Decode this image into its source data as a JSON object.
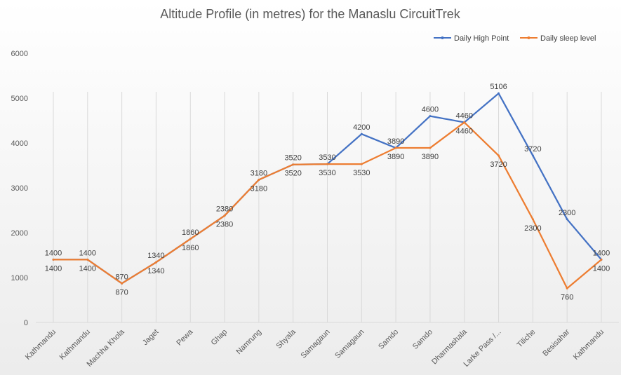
{
  "chart_data": {
    "type": "line",
    "title": "Altitude Profile (in metres) for the Manaslu CircuitTrek",
    "xlabel": "",
    "ylabel": "",
    "ylim": [
      0,
      6000
    ],
    "yticks": [
      0,
      1000,
      2000,
      3000,
      4000,
      5000,
      6000
    ],
    "grid": "vertical",
    "legend": "top-right",
    "categories": [
      "Kathmandu",
      "Kathmandu",
      "Machha Khola",
      "Jaget",
      "Pewa",
      "Ghap",
      "Namrung",
      "Shyala",
      "Samagaun",
      "Samagaun",
      "Samdo",
      "Samdo",
      "Dharmashala",
      "Larke Pass /...",
      "Tiliche",
      "Besisahar",
      "Kathmandu"
    ],
    "series": [
      {
        "name": "Daily High Point",
        "color": "#4472C4",
        "values": [
          1400,
          1400,
          870,
          1340,
          1860,
          2380,
          3180,
          3520,
          3530,
          4200,
          3890,
          4600,
          4460,
          5106,
          3720,
          2300,
          1400
        ]
      },
      {
        "name": "Daily sleep level",
        "color": "#ED7D31",
        "values": [
          1400,
          1400,
          870,
          1340,
          1860,
          2380,
          3180,
          3520,
          3530,
          3530,
          3890,
          3890,
          4460,
          3720,
          2300,
          760,
          1400
        ]
      }
    ]
  }
}
